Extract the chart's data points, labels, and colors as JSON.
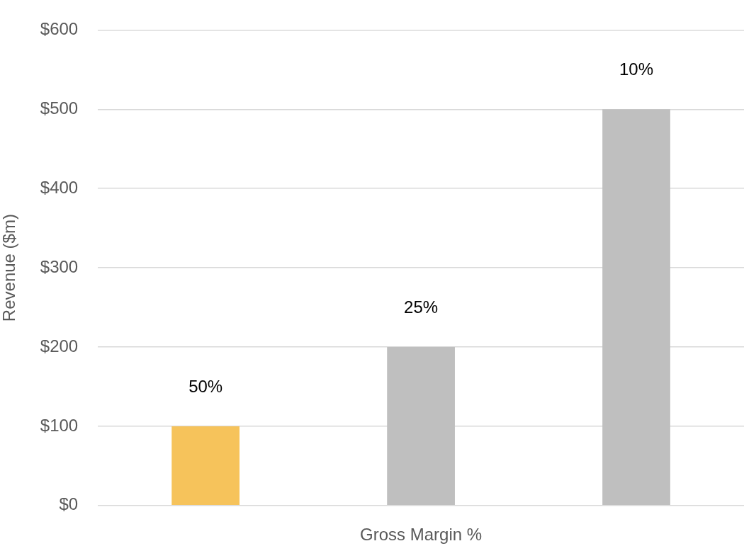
{
  "chart_data": {
    "type": "bar",
    "xlabel": "Gross Margin %",
    "ylabel": "Revenue ($m)",
    "categories": [
      null,
      null,
      null
    ],
    "values": [
      100,
      200,
      500
    ],
    "colors": [
      "#f6c35b",
      "#bfbfbf",
      "#bfbfbf"
    ],
    "annotations": [
      "50%",
      "25%",
      "10%"
    ],
    "ylim": [
      0,
      600
    ],
    "yticks": [
      {
        "value": 0,
        "label": "$0"
      },
      {
        "value": 100,
        "label": "$100"
      },
      {
        "value": 200,
        "label": "$200"
      },
      {
        "value": 300,
        "label": "$300"
      },
      {
        "value": 400,
        "label": "$400"
      },
      {
        "value": 500,
        "label": "$500"
      },
      {
        "value": 600,
        "label": "$600"
      }
    ],
    "grid": "y",
    "legend": false
  }
}
